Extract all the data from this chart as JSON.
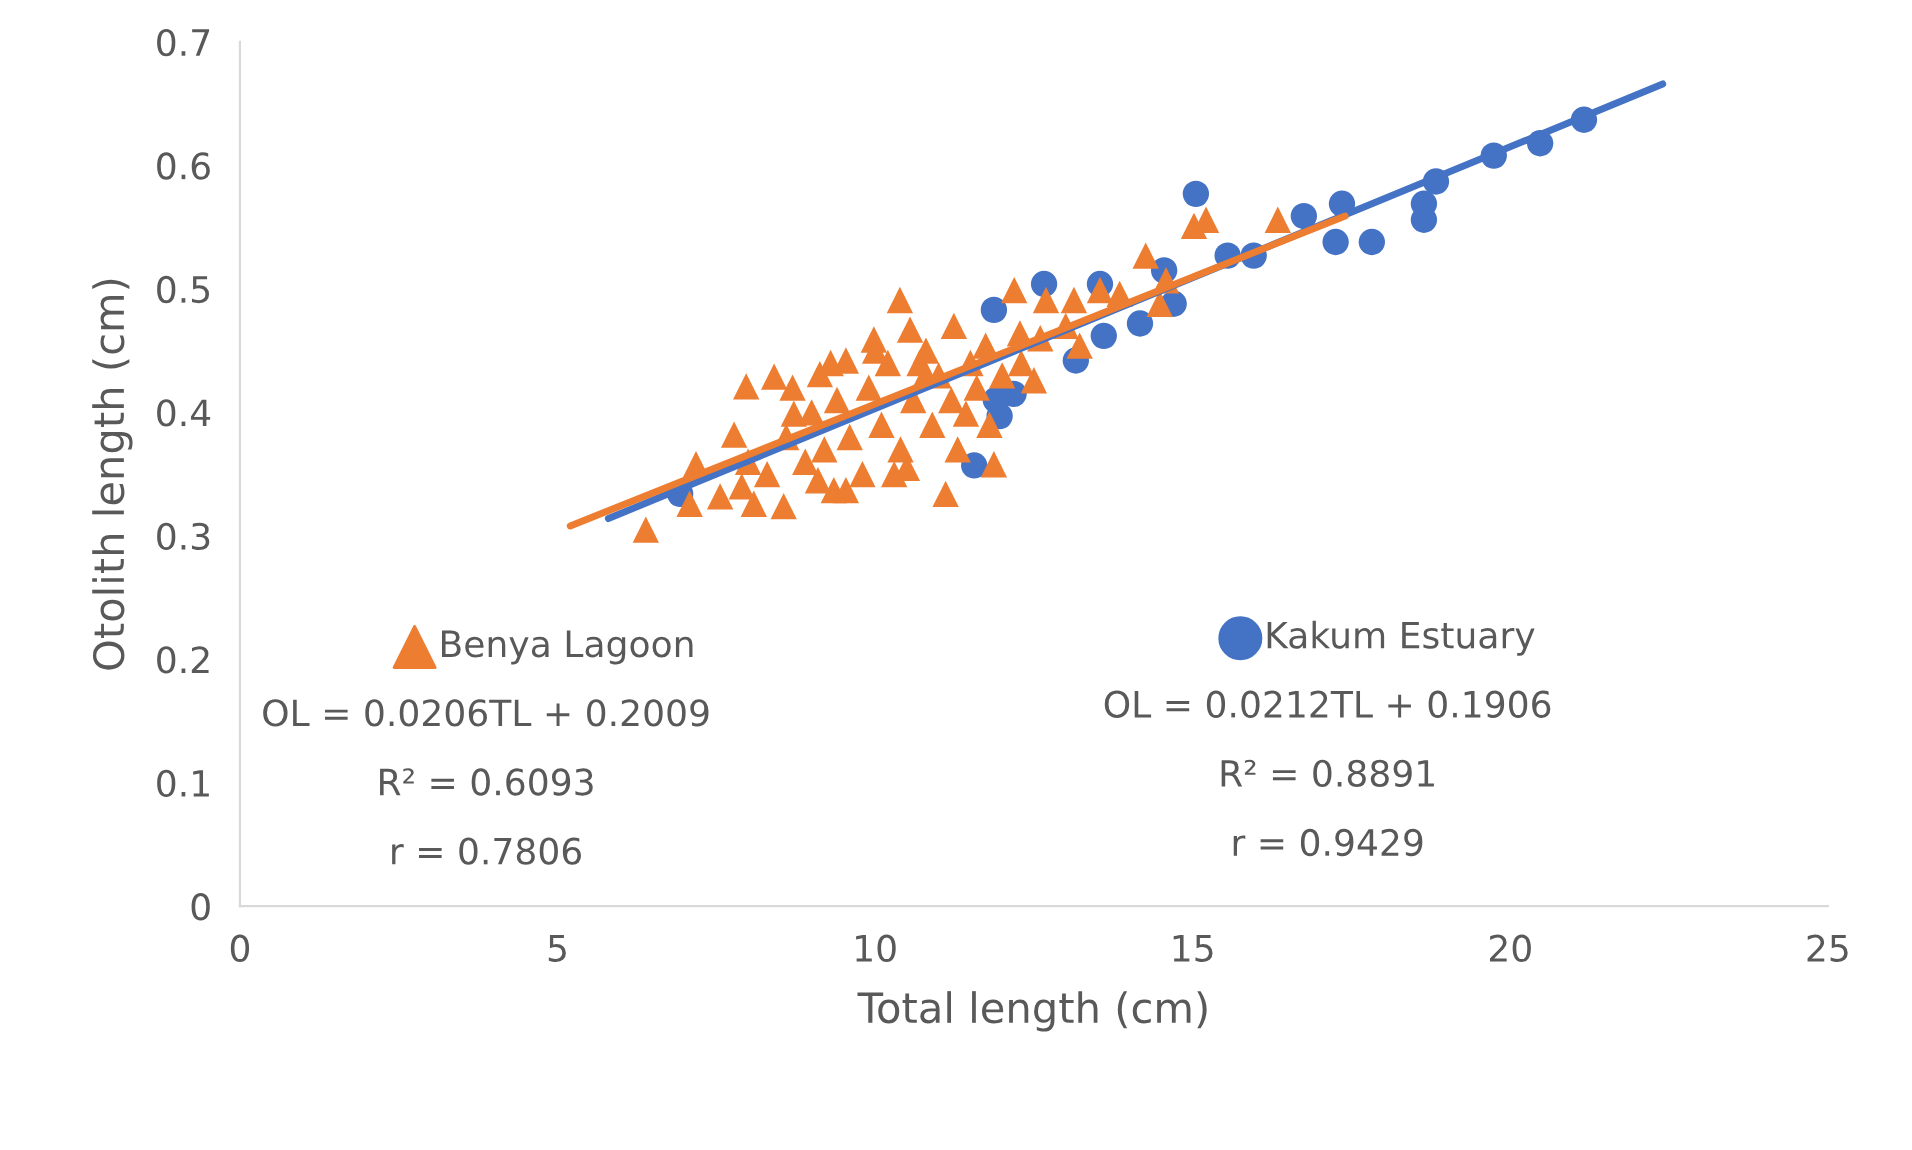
{
  "chart_data": {
    "type": "scatter",
    "xlabel": "Total length (cm)",
    "ylabel": "Otolith length (cm)",
    "xlim": [
      0,
      25
    ],
    "xticks": [
      0,
      5,
      10,
      15,
      20,
      25
    ],
    "ylim": [
      0,
      0.7
    ],
    "yticks": [
      0,
      0.1,
      0.2,
      0.3,
      0.4,
      0.5,
      0.6,
      0.7
    ],
    "grid": false,
    "legend": "bottom",
    "series": [
      {
        "name": "Benya Lagoon",
        "marker": "triangle",
        "color": "#ed7d31",
        "x": [
          6.39,
          7.08,
          7.18,
          7.56,
          7.78,
          7.97,
          8.09,
          8.41,
          8.56,
          8.72,
          9.13,
          9.35,
          9.54,
          9.54,
          9.98,
          10.39,
          10.55,
          10.3,
          10.8,
          11.11,
          11.24,
          11.43,
          11.87,
          11.74,
          12.19,
          12.28,
          12.5,
          12.69,
          13.13,
          13.22,
          13.54,
          13.85,
          14.26,
          14.58,
          14.48,
          15.02,
          15.21,
          16.34,
          8.3,
          8.6,
          8.9,
          9.0,
          9.2,
          9.4,
          9.6,
          9.8,
          9.9,
          10.1,
          10.2,
          10.4,
          10.6,
          10.7,
          10.9,
          11.0,
          11.2,
          11.5,
          8.0,
          8.7,
          9.3,
          10.0,
          10.8,
          11.6,
          12.0,
          12.3,
          7.9,
          9.1,
          10.5,
          11.3,
          11.8,
          12.6,
          13.0
        ],
        "values": [
          0.305,
          0.326,
          0.358,
          0.332,
          0.382,
          0.421,
          0.326,
          0.429,
          0.324,
          0.399,
          0.431,
          0.337,
          0.337,
          0.442,
          0.459,
          0.491,
          0.467,
          0.35,
          0.431,
          0.334,
          0.47,
          0.399,
          0.358,
          0.454,
          0.499,
          0.464,
          0.426,
          0.491,
          0.491,
          0.454,
          0.499,
          0.496,
          0.527,
          0.507,
          0.488,
          0.551,
          0.556,
          0.556,
          0.35,
          0.38,
          0.36,
          0.4,
          0.37,
          0.41,
          0.38,
          0.35,
          0.42,
          0.39,
          0.44,
          0.37,
          0.41,
          0.44,
          0.39,
          0.43,
          0.41,
          0.44,
          0.36,
          0.42,
          0.44,
          0.45,
          0.45,
          0.42,
          0.43,
          0.44,
          0.34,
          0.345,
          0.355,
          0.37,
          0.39,
          0.46,
          0.47
        ]
      },
      {
        "name": "Kakum Estuary",
        "marker": "circle",
        "color": "#4472c4",
        "x": [
          6.93,
          11.56,
          11.96,
          11.9,
          12.18,
          13.16,
          13.6,
          14.17,
          14.7,
          14.55,
          13.54,
          12.66,
          11.87,
          15.05,
          15.55,
          15.96,
          16.75,
          17.35,
          17.25,
          17.82,
          18.64,
          18.64,
          18.83,
          19.74,
          20.47,
          21.16
        ],
        "values": [
          0.334,
          0.357,
          0.397,
          0.41,
          0.415,
          0.442,
          0.462,
          0.472,
          0.488,
          0.515,
          0.504,
          0.504,
          0.483,
          0.577,
          0.527,
          0.527,
          0.559,
          0.569,
          0.538,
          0.538,
          0.569,
          0.556,
          0.587,
          0.608,
          0.618,
          0.637
        ]
      },
      {
        "type": "line",
        "color": "#4472c4",
        "x": [
          5.8,
          22.4
        ],
        "values": [
          0.314,
          0.666
        ]
      },
      {
        "type": "line",
        "color": "#ed7d31",
        "x": [
          5.2,
          17.4
        ],
        "values": [
          0.308,
          0.559
        ]
      }
    ],
    "annotations": [
      "OL = 0.0206TL + 0.2009",
      "R² = 0.6093",
      "r = 0.7806",
      "OL = 0.0212TL + 0.1906",
      "R² = 0.8891",
      "r = 0.9429"
    ]
  }
}
